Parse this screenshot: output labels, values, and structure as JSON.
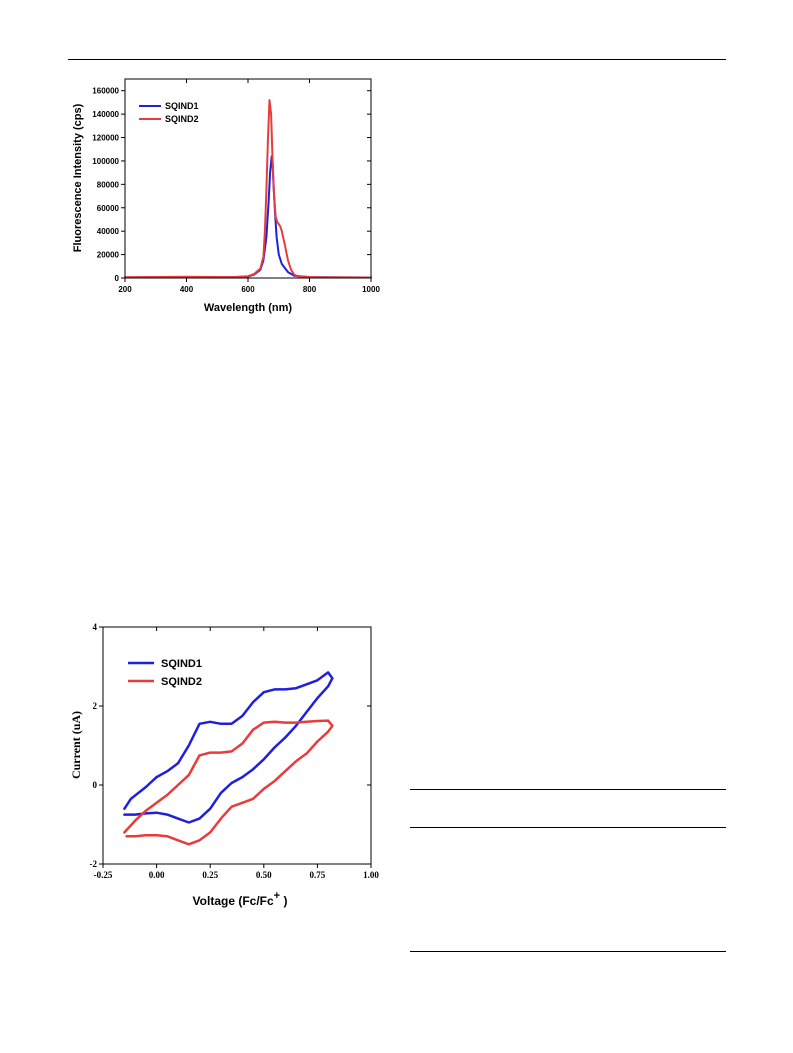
{
  "colors": {
    "series1": "#1f1fdc",
    "series2": "#e83c3c"
  },
  "chart_data": [
    {
      "type": "line",
      "xlabel": "Wavelength (nm)",
      "ylabel": "Fluorescence Intensity (cps)",
      "xlim": [
        200,
        1000
      ],
      "ylim": [
        0,
        170000
      ],
      "xticks": [
        200,
        400,
        600,
        800,
        1000
      ],
      "yticks": [
        0,
        20000,
        40000,
        60000,
        80000,
        100000,
        120000,
        140000,
        160000
      ],
      "legend_position": "top-left",
      "series": [
        {
          "name": "SQIND1",
          "color": "#1f1fdc",
          "x": [
            200,
            400,
            550,
            600,
            620,
            640,
            650,
            660,
            667,
            672,
            677,
            680,
            683,
            688,
            693,
            700,
            710,
            730,
            750,
            800,
            900,
            1000
          ],
          "y": [
            500,
            800,
            600,
            1200,
            3000,
            7000,
            15000,
            35000,
            65000,
            90000,
            104000,
            98000,
            80000,
            55000,
            35000,
            20000,
            12000,
            5000,
            2000,
            800,
            500,
            400
          ]
        },
        {
          "name": "SQIND2",
          "color": "#e83c3c",
          "x": [
            200,
            400,
            550,
            600,
            620,
            640,
            650,
            655,
            660,
            665,
            670,
            675,
            680,
            685,
            690,
            695,
            700,
            705,
            710,
            720,
            730,
            740,
            750,
            760,
            800,
            900,
            1000
          ],
          "y": [
            600,
            1000,
            800,
            1500,
            3500,
            8000,
            18000,
            40000,
            75000,
            120000,
            152000,
            140000,
            100000,
            70000,
            52000,
            48000,
            46000,
            44000,
            40000,
            28000,
            15000,
            7000,
            3000,
            1500,
            800,
            500,
            400
          ]
        }
      ]
    },
    {
      "type": "line",
      "xlabel": "Voltage (Fc/Fc",
      "xlabel_sup": "+",
      "xlabel_tail": " )",
      "ylabel": "Current (uA)",
      "xlim": [
        -0.25,
        1.0
      ],
      "ylim": [
        -2,
        4
      ],
      "xticks": [
        -0.25,
        0.0,
        0.25,
        0.5,
        0.75,
        1.0
      ],
      "xticklabels": [
        "-0.25",
        "0.00",
        "0.25",
        "0.50",
        "0.75",
        "1.00"
      ],
      "yticks": [
        -2,
        0,
        2,
        4
      ],
      "legend_position": "top-left",
      "series": [
        {
          "name": "SQIND1",
          "color": "#1f1fdc",
          "x": [
            -0.15,
            -0.12,
            -0.05,
            0.0,
            0.05,
            0.1,
            0.15,
            0.2,
            0.25,
            0.3,
            0.35,
            0.4,
            0.45,
            0.5,
            0.55,
            0.6,
            0.65,
            0.7,
            0.75,
            0.8,
            0.82,
            0.8,
            0.75,
            0.7,
            0.65,
            0.6,
            0.55,
            0.5,
            0.45,
            0.4,
            0.35,
            0.3,
            0.25,
            0.2,
            0.15,
            0.1,
            0.05,
            0.0,
            -0.05,
            -0.1,
            -0.15
          ],
          "y": [
            -0.6,
            -0.35,
            -0.05,
            0.2,
            0.35,
            0.55,
            1.0,
            1.55,
            1.6,
            1.55,
            1.55,
            1.75,
            2.1,
            2.35,
            2.42,
            2.42,
            2.45,
            2.55,
            2.65,
            2.85,
            2.7,
            2.5,
            2.2,
            1.85,
            1.5,
            1.2,
            0.95,
            0.65,
            0.4,
            0.2,
            0.05,
            -0.2,
            -0.6,
            -0.85,
            -0.95,
            -0.85,
            -0.75,
            -0.7,
            -0.72,
            -0.75,
            -0.75
          ]
        },
        {
          "name": "SQIND2",
          "color": "#e83c3c",
          "x": [
            -0.15,
            -0.1,
            -0.05,
            0.0,
            0.05,
            0.1,
            0.15,
            0.2,
            0.25,
            0.3,
            0.35,
            0.4,
            0.45,
            0.5,
            0.55,
            0.6,
            0.65,
            0.7,
            0.75,
            0.8,
            0.82,
            0.8,
            0.75,
            0.7,
            0.65,
            0.6,
            0.55,
            0.5,
            0.45,
            0.4,
            0.35,
            0.3,
            0.25,
            0.2,
            0.15,
            0.1,
            0.05,
            0.0,
            -0.05,
            -0.1,
            -0.14
          ],
          "y": [
            -1.2,
            -0.9,
            -0.65,
            -0.45,
            -0.25,
            0.0,
            0.25,
            0.75,
            0.82,
            0.82,
            0.85,
            1.05,
            1.4,
            1.58,
            1.6,
            1.58,
            1.58,
            1.6,
            1.62,
            1.63,
            1.5,
            1.35,
            1.1,
            0.8,
            0.6,
            0.35,
            0.1,
            -0.1,
            -0.35,
            -0.45,
            -0.55,
            -0.85,
            -1.2,
            -1.4,
            -1.5,
            -1.4,
            -1.3,
            -1.27,
            -1.27,
            -1.3,
            -1.3
          ]
        }
      ]
    }
  ]
}
